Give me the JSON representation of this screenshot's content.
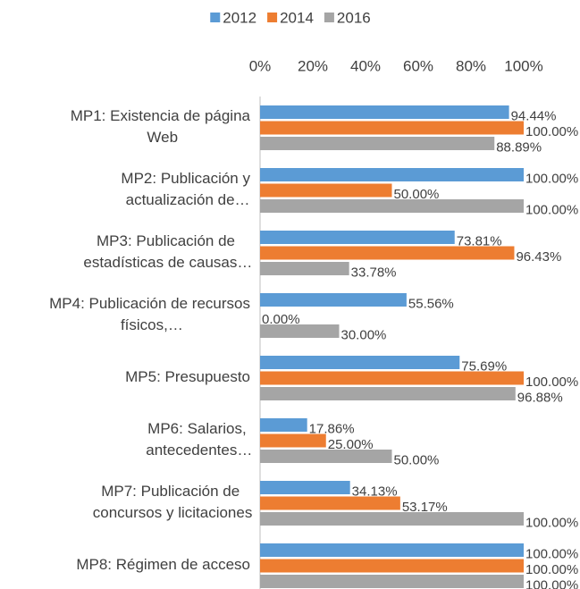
{
  "chart_data": {
    "type": "hbar",
    "categories": [
      "MP1: Existencia de página Web",
      "MP2: Publicación y actualización de…",
      "MP3: Publicación de estadísticas de causas…",
      "MP4: Publicación de recursos físicos,…",
      "MP5: Presupuesto",
      "MP6: Salarios, antecedentes…",
      "MP7: Publicación de concursos y licitaciones",
      "MP8: Régimen de acceso"
    ],
    "series": [
      {
        "name": "2012",
        "color": "#5b9bd5",
        "values": [
          94.44,
          100,
          73.81,
          55.56,
          75.69,
          17.86,
          34.13,
          100
        ],
        "value_labels": [
          "94.44%",
          "100.00%",
          "73.81%",
          "55.56%",
          "75.69%",
          "17.86%",
          "34.13%",
          "100.00%"
        ]
      },
      {
        "name": "2014",
        "color": "#ed7d31",
        "values": [
          100,
          50,
          96.43,
          0,
          100,
          25,
          53.17,
          100
        ],
        "value_labels": [
          "100.00%",
          "50.00%",
          "96.43%",
          "0.00%",
          "100.00%",
          "25.00%",
          "53.17%",
          "100.00%"
        ]
      },
      {
        "name": "2016",
        "color": "#a5a5a5",
        "values": [
          88.89,
          100,
          33.78,
          30,
          96.88,
          50,
          100,
          100
        ],
        "value_labels": [
          "88.89%",
          "100.00%",
          "33.78%",
          "30.00%",
          "96.88%",
          "50.00%",
          "100.00%",
          "100.00%"
        ]
      }
    ],
    "xlim": [
      0,
      100
    ],
    "xticks": [
      {
        "value": 0,
        "label": "0%"
      },
      {
        "value": 20,
        "label": "20%"
      },
      {
        "value": 40,
        "label": "40%"
      },
      {
        "value": 60,
        "label": "60%"
      },
      {
        "value": 80,
        "label": "80%"
      },
      {
        "value": 100,
        "label": "100%"
      }
    ],
    "grid": false,
    "legend": "top"
  }
}
